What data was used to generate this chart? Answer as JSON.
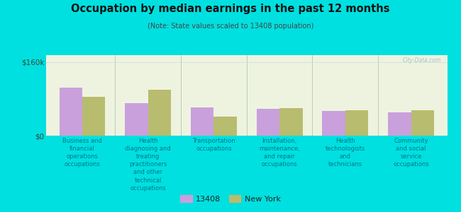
{
  "title": "Occupation by median earnings in the past 12 months",
  "subtitle": "(Note: State values scaled to 13408 population)",
  "background_color": "#00e0e0",
  "categories": [
    "Business and\nfinancial\noperations\noccupations",
    "Health\ndiagnosing and\ntreating\npractitioners\nand other\ntechnical\noccupations",
    "Transportation\noccupations",
    "Installation,\nmaintenance,\nand repair\noccupations",
    "Health\ntechnologists\nand\ntechnicians",
    "Community\nand social\nservice\noccupations"
  ],
  "values_local": [
    105000,
    70000,
    62000,
    58000,
    53000,
    50000
  ],
  "values_ny": [
    85000,
    100000,
    42000,
    60000,
    56000,
    55000
  ],
  "color_local": "#c9a0dc",
  "color_ny": "#b8bc6e",
  "ylim": [
    0,
    175000
  ],
  "legend_local": "13408",
  "legend_ny": "New York",
  "bar_width": 0.35,
  "watermark": "City-Data.com"
}
